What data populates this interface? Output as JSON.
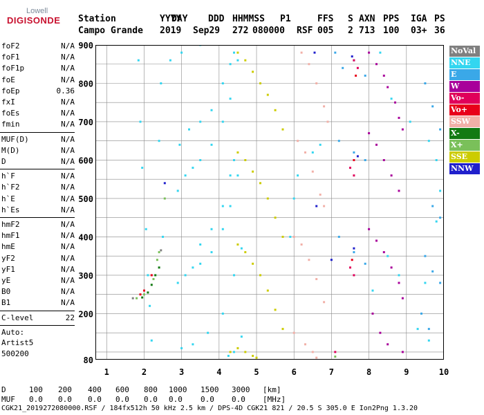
{
  "logo": {
    "top": "Lowell",
    "bottom": "DIGISONDE"
  },
  "header": {
    "labels": [
      "Station",
      "YYYY",
      "DAY",
      "DDD",
      "HHMMSS",
      "P1",
      "FFS",
      "S",
      "AXN",
      "PPS",
      "IGA",
      "PS"
    ],
    "values": [
      "Campo Grande",
      "2019",
      "Sep29",
      "272",
      "080000",
      "RSF",
      "005",
      "2",
      "713",
      "100",
      "03+",
      "36"
    ]
  },
  "params": {
    "g1": [
      {
        "label": "foF2",
        "value": "N/A"
      },
      {
        "label": "foF1",
        "value": "N/A"
      },
      {
        "label": "foF1p",
        "value": "N/A"
      },
      {
        "label": "foE",
        "value": "N/A"
      },
      {
        "label": "foEp",
        "value": "0.36"
      },
      {
        "label": "fxI",
        "value": "N/A"
      },
      {
        "label": "foEs",
        "value": "N/A"
      },
      {
        "label": "fmin",
        "value": "N/A"
      }
    ],
    "g2": [
      {
        "label": "MUF(D)",
        "value": "N/A"
      },
      {
        "label": "M(D)",
        "value": "N/A"
      },
      {
        "label": "D",
        "value": "N/A"
      }
    ],
    "g3": [
      {
        "label": "h`F",
        "value": "N/A"
      },
      {
        "label": "h`F2",
        "value": "N/A"
      },
      {
        "label": "h`E",
        "value": "N/A"
      },
      {
        "label": "h`Es",
        "value": "N/A"
      }
    ],
    "g4": [
      {
        "label": "hmF2",
        "value": "N/A"
      },
      {
        "label": "hmF1",
        "value": "N/A"
      },
      {
        "label": "hmE",
        "value": "N/A"
      },
      {
        "label": "yF2",
        "value": "N/A"
      },
      {
        "label": "yF1",
        "value": "N/A"
      },
      {
        "label": "yE",
        "value": "N/A"
      },
      {
        "label": "B0",
        "value": "N/A"
      },
      {
        "label": "B1",
        "value": "N/A"
      }
    ],
    "clevel": {
      "label": "C-level",
      "value": "22"
    },
    "auto": [
      "Auto:",
      "Artist5",
      "500200"
    ]
  },
  "legend": [
    {
      "label": "NoVal",
      "color": "#808080"
    },
    {
      "label": "NNE",
      "color": "#33d6f0"
    },
    {
      "label": "E",
      "color": "#3aa8e8"
    },
    {
      "label": "W",
      "color": "#a8009a"
    },
    {
      "label": "Vo-",
      "color": "#e0005a"
    },
    {
      "label": "Vo+",
      "color": "#e8001a"
    },
    {
      "label": "SSW",
      "color": "#f2b0a8"
    },
    {
      "label": "X-",
      "color": "#127a12"
    },
    {
      "label": "X+",
      "color": "#7ac05a"
    },
    {
      "label": "SSE",
      "color": "#cccc00"
    },
    {
      "label": "NNW",
      "color": "#2020cc"
    }
  ],
  "bottom": {
    "row1": [
      "D",
      "100",
      "200",
      "400",
      "600",
      "800",
      "1000",
      "1500",
      "3000",
      "[km]"
    ],
    "row2": [
      "MUF",
      "0.0",
      "0.0",
      "0.0",
      "0.0",
      "0.0",
      "0.0",
      "0.0",
      "0.0",
      "[MHz]"
    ]
  },
  "footer": "CGK21_2019272080000.RSF / 184fx512h 50 kHz 2.5 km / DPS-4D CGK21 821 / 20.5 S 305.0 E Ion2Png 1.3.20",
  "chart_data": {
    "type": "scatter",
    "title": "",
    "xlabel": "",
    "ylabel": "",
    "xlim": [
      0.7,
      10.0
    ],
    "ylim": [
      80,
      900
    ],
    "x_ticks": [
      "1",
      "2",
      "3",
      "4",
      "5",
      "6",
      "7",
      "8",
      "9",
      "10"
    ],
    "y_ticks": [
      "80",
      "200",
      "300",
      "400",
      "500",
      "600",
      "700",
      "800",
      "900"
    ],
    "grid": true,
    "series": [
      {
        "name": "NNE",
        "color": "#33d6f0",
        "points": [
          [
            2.9,
            520
          ],
          [
            3.1,
            560
          ],
          [
            3.3,
            580
          ],
          [
            3.5,
            600
          ],
          [
            3.8,
            640
          ],
          [
            4.1,
            700
          ],
          [
            4.3,
            760
          ],
          [
            4.5,
            860
          ],
          [
            2.9,
            280
          ],
          [
            3.1,
            300
          ],
          [
            3.3,
            320
          ],
          [
            3.5,
            330
          ],
          [
            3.8,
            360
          ],
          [
            4.1,
            420
          ],
          [
            4.3,
            480
          ],
          [
            4.5,
            560
          ],
          [
            3.0,
            110
          ],
          [
            3.3,
            120
          ],
          [
            3.7,
            150
          ],
          [
            4.1,
            200
          ],
          [
            4.4,
            300
          ],
          [
            4.6,
            370
          ],
          [
            2.95,
            640
          ],
          [
            3.2,
            680
          ],
          [
            3.5,
            700
          ],
          [
            3.8,
            730
          ],
          [
            4.1,
            800
          ],
          [
            4.3,
            850
          ],
          [
            4.4,
            880
          ],
          [
            3.5,
            380
          ],
          [
            3.8,
            420
          ],
          [
            4.1,
            480
          ],
          [
            4.3,
            560
          ],
          [
            4.4,
            600
          ],
          [
            2.7,
            860
          ],
          [
            3.0,
            880
          ],
          [
            3.5,
            900
          ],
          [
            4.25,
            90
          ],
          [
            4.4,
            100
          ],
          [
            4.6,
            140
          ],
          [
            2.2,
            130
          ],
          [
            2.15,
            220
          ],
          [
            2.1,
            300
          ],
          [
            2.05,
            420
          ],
          [
            1.95,
            580
          ],
          [
            1.9,
            700
          ],
          [
            1.85,
            860
          ],
          [
            5.9,
            400
          ],
          [
            6.0,
            500
          ],
          [
            6.1,
            560
          ],
          [
            6.5,
            620
          ],
          [
            6.7,
            640
          ],
          [
            8.3,
            880
          ],
          [
            8.6,
            760
          ],
          [
            9.1,
            700
          ],
          [
            9.6,
            650
          ],
          [
            9.8,
            600
          ],
          [
            9.9,
            520
          ],
          [
            9.8,
            440
          ],
          [
            9.5,
            280
          ],
          [
            9.3,
            160
          ],
          [
            9.6,
            130
          ],
          [
            8.8,
            300
          ],
          [
            8.5,
            350
          ],
          [
            8.1,
            260
          ],
          [
            2.45,
            800
          ],
          [
            2.4,
            650
          ],
          [
            2.5,
            400
          ]
        ]
      },
      {
        "name": "SSE",
        "color": "#cccc00",
        "points": [
          [
            4.5,
            880
          ],
          [
            4.7,
            860
          ],
          [
            4.9,
            830
          ],
          [
            5.1,
            800
          ],
          [
            5.3,
            770
          ],
          [
            5.5,
            730
          ],
          [
            5.7,
            680
          ],
          [
            4.5,
            620
          ],
          [
            4.7,
            600
          ],
          [
            4.9,
            570
          ],
          [
            5.1,
            540
          ],
          [
            5.3,
            500
          ],
          [
            5.5,
            450
          ],
          [
            5.7,
            400
          ],
          [
            4.5,
            380
          ],
          [
            4.7,
            360
          ],
          [
            4.9,
            330
          ],
          [
            5.1,
            300
          ],
          [
            5.3,
            260
          ],
          [
            5.5,
            210
          ],
          [
            5.7,
            160
          ],
          [
            4.3,
            100
          ],
          [
            4.5,
            110
          ],
          [
            4.7,
            100
          ],
          [
            4.9,
            90
          ],
          [
            5.0,
            85
          ]
        ]
      },
      {
        "name": "SSW",
        "color": "#f2b0a8",
        "points": [
          [
            6.2,
            880
          ],
          [
            6.4,
            850
          ],
          [
            6.6,
            800
          ],
          [
            6.8,
            740
          ],
          [
            6.9,
            700
          ],
          [
            6.1,
            650
          ],
          [
            6.3,
            620
          ],
          [
            6.5,
            570
          ],
          [
            6.7,
            510
          ],
          [
            6.8,
            480
          ],
          [
            6.0,
            400
          ],
          [
            6.2,
            380
          ],
          [
            6.4,
            340
          ],
          [
            6.6,
            290
          ],
          [
            6.8,
            230
          ],
          [
            6.0,
            150
          ],
          [
            6.3,
            120
          ],
          [
            6.5,
            100
          ],
          [
            6.6,
            85
          ]
        ]
      },
      {
        "name": "W",
        "color": "#a8009a",
        "points": [
          [
            8.0,
            880
          ],
          [
            8.2,
            850
          ],
          [
            8.4,
            820
          ],
          [
            8.5,
            790
          ],
          [
            8.7,
            750
          ],
          [
            8.8,
            710
          ],
          [
            8.9,
            680
          ],
          [
            8.0,
            670
          ],
          [
            8.2,
            640
          ],
          [
            8.4,
            600
          ],
          [
            8.6,
            560
          ],
          [
            8.8,
            520
          ],
          [
            8.0,
            420
          ],
          [
            8.2,
            390
          ],
          [
            8.4,
            360
          ],
          [
            8.6,
            320
          ],
          [
            8.8,
            280
          ],
          [
            8.9,
            240
          ],
          [
            8.1,
            200
          ],
          [
            8.3,
            150
          ],
          [
            8.5,
            120
          ],
          [
            8.9,
            100
          ]
        ]
      },
      {
        "name": "E",
        "color": "#3aa8e8",
        "points": [
          [
            7.1,
            880
          ],
          [
            7.3,
            840
          ],
          [
            7.6,
            860
          ],
          [
            7.9,
            820
          ],
          [
            7.2,
            650
          ],
          [
            7.6,
            620
          ],
          [
            7.9,
            600
          ],
          [
            7.2,
            400
          ],
          [
            7.6,
            360
          ],
          [
            7.9,
            330
          ],
          [
            9.5,
            800
          ],
          [
            9.7,
            740
          ],
          [
            9.9,
            680
          ],
          [
            9.7,
            480
          ],
          [
            9.9,
            450
          ],
          [
            9.5,
            350
          ],
          [
            9.7,
            310
          ],
          [
            9.9,
            280
          ],
          [
            9.4,
            200
          ],
          [
            9.6,
            160
          ]
        ]
      },
      {
        "name": "NNW",
        "color": "#2020cc",
        "points": [
          [
            2.55,
            540
          ],
          [
            6.55,
            880
          ],
          [
            7.55,
            870
          ],
          [
            7.7,
            610
          ],
          [
            6.6,
            480
          ],
          [
            7.6,
            370
          ],
          [
            7.0,
            340
          ]
        ]
      },
      {
        "name": "Vo-",
        "color": "#e0005a",
        "points": [
          [
            7.6,
            860
          ],
          [
            7.7,
            840
          ],
          [
            7.5,
            580
          ],
          [
            7.6,
            560
          ],
          [
            7.5,
            320
          ],
          [
            7.6,
            300
          ],
          [
            7.1,
            100
          ]
        ]
      },
      {
        "name": "Vo+",
        "color": "#e8001a",
        "points": [
          [
            2.0,
            260
          ],
          [
            1.9,
            250
          ],
          [
            2.2,
            300
          ],
          [
            7.65,
            820
          ],
          [
            7.6,
            600
          ],
          [
            7.55,
            340
          ]
        ]
      },
      {
        "name": "X-",
        "color": "#127a12",
        "points": [
          [
            2.1,
            255
          ],
          [
            2.2,
            275
          ],
          [
            2.3,
            300
          ],
          [
            2.4,
            320
          ],
          [
            1.95,
            242
          ]
        ]
      },
      {
        "name": "X+",
        "color": "#7ac05a",
        "points": [
          [
            1.8,
            240
          ],
          [
            2.0,
            250
          ],
          [
            2.25,
            290
          ],
          [
            2.35,
            340
          ],
          [
            2.4,
            360
          ],
          [
            2.55,
            500
          ],
          [
            7.1,
            88
          ]
        ]
      },
      {
        "name": "NoVal",
        "color": "#808080",
        "points": [
          [
            2.45,
            365
          ],
          [
            1.7,
            240
          ]
        ]
      }
    ]
  }
}
